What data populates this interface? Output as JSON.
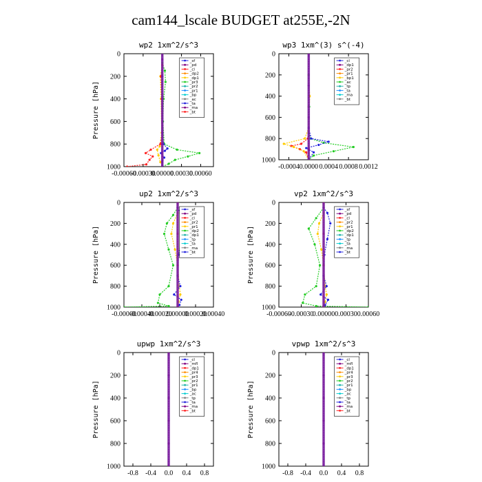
{
  "title": "cam144_lscale  BUDGET at255E,-2N",
  "chart_data": [
    {
      "type": "line",
      "title": "wp2  1xm^2/s^3",
      "ylabel": "Pressure [hPa]",
      "ylim": [
        1000,
        0
      ],
      "xlim": [
        -0.0006,
        0.0008
      ],
      "xticks": [
        -0.0006,
        -0.0003,
        0,
        0.0003,
        0.0006
      ],
      "xticklabels": [
        "-0.00060",
        "-0.00030",
        "0.00000",
        "0.00030",
        "0.00060"
      ],
      "yticks": [
        0,
        200,
        400,
        600,
        800,
        1000
      ],
      "grid": false,
      "legend": "top-right",
      "legend_entries": [
        "_sf",
        "_pd",
        "_cl",
        "_dp2",
        "_dp1",
        "_pr3",
        "_pr2",
        "_pr1",
        "_bp",
        "_ac",
        "_ta",
        "_ma",
        "_bt"
      ],
      "series": [
        {
          "name": "_pd",
          "color": "#800080",
          "points": [
            [
              0,
              50
            ],
            [
              0,
              200
            ],
            [
              0,
              400
            ],
            [
              0,
              600
            ],
            [
              0,
              800
            ],
            [
              0,
              950
            ],
            [
              0,
              1000
            ]
          ]
        },
        {
          "name": "_pr1",
          "color": "#22cc22",
          "points": [
            [
              0,
              80
            ],
            [
              4e-05,
              150
            ],
            [
              5e-05,
              250
            ],
            [
              2e-05,
              400
            ],
            [
              1e-05,
              600
            ],
            [
              3e-05,
              800
            ],
            [
              0.00023,
              850
            ],
            [
              0.00058,
              880
            ],
            [
              0.0004,
              910
            ],
            [
              0.0002,
              940
            ],
            [
              0.0001,
              975
            ],
            [
              0,
              1000
            ]
          ]
        },
        {
          "name": "_pr2",
          "color": "#ffcc00",
          "points": [
            [
              0,
              100
            ],
            [
              -3e-05,
              200
            ],
            [
              -2e-05,
              400
            ],
            [
              -1e-05,
              700
            ],
            [
              -4e-05,
              820
            ],
            [
              -8e-05,
              850
            ],
            [
              -6e-05,
              900
            ],
            [
              -3e-05,
              960
            ],
            [
              0,
              1000
            ]
          ]
        },
        {
          "name": "_dp1",
          "color": "#ff2020",
          "points": [
            [
              0,
              100
            ],
            [
              -2e-05,
              200
            ],
            [
              -1e-05,
              400
            ],
            [
              0,
              700
            ],
            [
              -3e-05,
              800
            ],
            [
              -0.00018,
              850
            ],
            [
              -0.00026,
              880
            ],
            [
              -0.00015,
              910
            ],
            [
              -0.0002,
              940
            ],
            [
              -0.00025,
              980
            ],
            [
              -0.00055,
              1000
            ]
          ]
        },
        {
          "name": "_ac",
          "color": "#2020dd",
          "points": [
            [
              0,
              200
            ],
            [
              0,
              700
            ],
            [
              2e-05,
              800
            ],
            [
              8e-05,
              840
            ],
            [
              4e-05,
              860
            ],
            [
              -2e-05,
              880
            ],
            [
              3e-05,
              920
            ],
            [
              0,
              960
            ],
            [
              0,
              1000
            ]
          ]
        }
      ]
    },
    {
      "type": "line",
      "title": "wp3  1xm^(3) s^(-4)",
      "ylabel": "",
      "ylim": [
        1000,
        0
      ],
      "xlim": [
        -0.0006,
        0.0012
      ],
      "xticks": [
        -0.0004,
        0,
        0.0004,
        0.0008,
        0.0012
      ],
      "xticklabels": [
        "-0.0004",
        "0.0000",
        "0.0004",
        "0.0008",
        "0.0012"
      ],
      "yticks": [
        0,
        200,
        400,
        600,
        800,
        1000
      ],
      "grid": false,
      "legend": "top-right",
      "legend_entries": [
        "_cl",
        "_dp1",
        "_pr2",
        "_pr1",
        "_bp1",
        "_ac",
        "_tp",
        "_ta",
        "_ma",
        "_bt"
      ],
      "series": [
        {
          "name": "_dp1",
          "color": "#ff2020",
          "points": [
            [
              0,
              0
            ],
            [
              0,
              200
            ],
            [
              0,
              500
            ],
            [
              0,
              750
            ],
            [
              -2e-05,
              800
            ],
            [
              -0.00015,
              850
            ],
            [
              -0.00035,
              870
            ],
            [
              -0.00018,
              900
            ],
            [
              -5e-05,
              930
            ],
            [
              0,
              1000
            ]
          ]
        },
        {
          "name": "_pr2",
          "color": "#ffcc00",
          "points": [
            [
              0,
              200
            ],
            [
              2e-05,
              400
            ],
            [
              0,
              700
            ],
            [
              -8e-05,
              800
            ],
            [
              -0.0005,
              850
            ],
            [
              -0.0003,
              880
            ],
            [
              -0.0001,
              920
            ],
            [
              0,
              1000
            ]
          ]
        },
        {
          "name": "_ac",
          "color": "#22cc22",
          "points": [
            [
              0,
              200
            ],
            [
              1e-05,
              500
            ],
            [
              0,
              750
            ],
            [
              4e-05,
              800
            ],
            [
              0.0003,
              840
            ],
            [
              0.0009,
              880
            ],
            [
              0.0005,
              920
            ],
            [
              0.0001,
              960
            ],
            [
              0,
              1000
            ]
          ]
        },
        {
          "name": "_tp",
          "color": "#2020dd",
          "points": [
            [
              0,
              700
            ],
            [
              5e-05,
              800
            ],
            [
              0.0004,
              830
            ],
            [
              0.0002,
              860
            ],
            [
              -5e-05,
              890
            ],
            [
              0.0001,
              930
            ],
            [
              0,
              1000
            ]
          ]
        },
        {
          "name": "_cl",
          "color": "#800080",
          "points": [
            [
              0,
              0
            ],
            [
              0,
              300
            ],
            [
              0,
              600
            ],
            [
              0,
              900
            ],
            [
              0,
              1000
            ]
          ]
        }
      ]
    },
    {
      "type": "line",
      "title": "up2  1xm^2/s^3",
      "ylabel": "Pressure [hPa]",
      "ylim": [
        1000,
        0
      ],
      "xlim": [
        -0.0006,
        0.0004
      ],
      "xticks": [
        -0.0006,
        -0.0004,
        -0.0002,
        0,
        0.0002,
        0.0004
      ],
      "xticklabels": [
        "-0.00060",
        "-0.00040",
        "-0.00020",
        "0.00000",
        "0.00020",
        "0.00040"
      ],
      "yticks": [
        0,
        200,
        400,
        600,
        800,
        1000
      ],
      "grid": false,
      "legend": "top-right",
      "legend_entries": [
        "_sf",
        "_pd",
        "_cl",
        "_pr2",
        "_pr1",
        "_dp2",
        "_dp1",
        "_tp",
        "_ta",
        "_ma",
        "_bt"
      ],
      "series": [
        {
          "name": "_dp1",
          "color": "#22cc22",
          "points": [
            [
              0,
              50
            ],
            [
              -5e-05,
              120
            ],
            [
              -0.00012,
              200
            ],
            [
              -0.00015,
              300
            ],
            [
              -0.0001,
              450
            ],
            [
              -5e-05,
              600
            ],
            [
              -0.0001,
              800
            ],
            [
              -0.0002,
              880
            ],
            [
              -0.00022,
              960
            ],
            [
              -0.0001,
              990
            ],
            [
              -0.0006,
              1000
            ]
          ]
        },
        {
          "name": "_pr1",
          "color": "#ffcc00",
          "points": [
            [
              0,
              100
            ],
            [
              -5e-05,
              200
            ],
            [
              -7e-05,
              300
            ],
            [
              -3e-05,
              450
            ],
            [
              0,
              600
            ],
            [
              2e-05,
              800
            ],
            [
              3e-05,
              880
            ],
            [
              1e-05,
              950
            ],
            [
              0,
              1000
            ]
          ]
        },
        {
          "name": "_tp",
          "color": "#2020dd",
          "points": [
            [
              0,
              50
            ],
            [
              3e-05,
              100
            ],
            [
              6e-05,
              200
            ],
            [
              4e-05,
              350
            ],
            [
              1e-05,
              500
            ],
            [
              0,
              700
            ],
            [
              3e-05,
              800
            ],
            [
              -4e-05,
              880
            ],
            [
              4e-05,
              930
            ],
            [
              2e-05,
              980
            ],
            [
              0,
              1000
            ]
          ]
        },
        {
          "name": "_cl",
          "color": "#ff2020",
          "points": [
            [
              0,
              0
            ],
            [
              0,
              300
            ],
            [
              0,
              600
            ],
            [
              0,
              900
            ],
            [
              0,
              1000
            ]
          ]
        }
      ]
    },
    {
      "type": "line",
      "title": "vp2  1xm^2/s^3",
      "ylabel": "Pressure [hPa]",
      "ylim": [
        1000,
        0
      ],
      "xlim": [
        -0.0006,
        0.0006
      ],
      "xticks": [
        -0.0006,
        -0.0003,
        0,
        0.0003,
        0.0006
      ],
      "xticklabels": [
        "-0.00060",
        "-0.00030",
        "0.00000",
        "0.00030",
        "0.00060"
      ],
      "yticks": [
        0,
        200,
        400,
        600,
        800,
        1000
      ],
      "grid": false,
      "legend": "top-right",
      "legend_entries": [
        "_sf",
        "_pd",
        "_cl",
        "_pr2",
        "_pr1",
        "_dp2",
        "_dp1",
        "_tp",
        "_ta",
        "_ma",
        "_bt"
      ],
      "series": [
        {
          "name": "_dp1",
          "color": "#22cc22",
          "points": [
            [
              0,
              50
            ],
            [
              -0.0001,
              150
            ],
            [
              -0.0002,
              250
            ],
            [
              -0.00012,
              400
            ],
            [
              -5e-05,
              600
            ],
            [
              -0.0001,
              800
            ],
            [
              -0.00025,
              880
            ],
            [
              -0.00028,
              960
            ],
            [
              -0.0001,
              990
            ],
            [
              0.0006,
              1000
            ]
          ]
        },
        {
          "name": "_pr1",
          "color": "#ffcc00",
          "points": [
            [
              0,
              100
            ],
            [
              -6e-05,
              200
            ],
            [
              -8e-05,
              300
            ],
            [
              -3e-05,
              450
            ],
            [
              0,
              600
            ],
            [
              2e-05,
              800
            ],
            [
              4e-05,
              880
            ],
            [
              2e-05,
              950
            ],
            [
              0,
              1000
            ]
          ]
        },
        {
          "name": "_tp",
          "color": "#2020dd",
          "points": [
            [
              0,
              50
            ],
            [
              5e-05,
              100
            ],
            [
              9e-05,
              200
            ],
            [
              5e-05,
              350
            ],
            [
              1e-05,
              500
            ],
            [
              0,
              700
            ],
            [
              4e-05,
              800
            ],
            [
              -4e-05,
              880
            ],
            [
              6e-05,
              930
            ],
            [
              2e-05,
              980
            ],
            [
              0,
              1000
            ]
          ]
        },
        {
          "name": "_cl",
          "color": "#ff2020",
          "points": [
            [
              0,
              0
            ],
            [
              0,
              300
            ],
            [
              0,
              600
            ],
            [
              0,
              900
            ],
            [
              0,
              1000
            ]
          ]
        }
      ]
    },
    {
      "type": "line",
      "title": "upwp  1xm^2/s^3",
      "ylabel": "Pressure [hPa]",
      "ylim": [
        1000,
        0
      ],
      "xlim": [
        -1,
        1
      ],
      "xticks": [
        -0.8,
        -0.4,
        0,
        0.4,
        0.8
      ],
      "xticklabels": [
        "-0.8",
        "-0.4",
        "0.0",
        "0.4",
        "0.8"
      ],
      "yticks": [
        0,
        200,
        400,
        600,
        800,
        1000
      ],
      "grid": false,
      "legend": "top-right",
      "legend_entries": [
        "_cl",
        "_mfl",
        "_dp1",
        "_pr4",
        "_pr3",
        "_pr2",
        "_pr1",
        "_bp",
        "_ac",
        "_tp",
        "_ta",
        "_ma",
        "_bt"
      ],
      "series": [
        {
          "name": "_bt",
          "color": "#800080",
          "points": [
            [
              0,
              0
            ],
            [
              0,
              200
            ],
            [
              0,
              400
            ],
            [
              0,
              600
            ],
            [
              0,
              800
            ],
            [
              0,
              1000
            ]
          ]
        }
      ]
    },
    {
      "type": "line",
      "title": "vpwp  1xm^2/s^3",
      "ylabel": "Pressure [hPa]",
      "ylim": [
        1000,
        0
      ],
      "xlim": [
        -1,
        1
      ],
      "xticks": [
        -0.8,
        -0.4,
        0,
        0.4,
        0.8
      ],
      "xticklabels": [
        "-0.8",
        "-0.4",
        "0.0",
        "0.4",
        "0.8"
      ],
      "yticks": [
        0,
        200,
        400,
        600,
        800,
        1000
      ],
      "grid": false,
      "legend": "top-right",
      "legend_entries": [
        "_cl",
        "_mfl",
        "_dp1",
        "_pr4",
        "_pr3",
        "_pr2",
        "_pr1",
        "_bp",
        "_ac",
        "_tp",
        "_ta",
        "_ma",
        "_bt"
      ],
      "series": [
        {
          "name": "_bt",
          "color": "#800080",
          "points": [
            [
              0,
              0
            ],
            [
              0,
              200
            ],
            [
              0,
              400
            ],
            [
              0,
              600
            ],
            [
              0,
              800
            ],
            [
              0,
              1000
            ]
          ]
        }
      ]
    }
  ],
  "legend_colors": [
    "#2020dd",
    "#800080",
    "#ff2020",
    "#ff8c00",
    "#ffcc00",
    "#22cc22",
    "#20b2aa",
    "#1e90ff",
    "#00ced1",
    "#808080"
  ]
}
